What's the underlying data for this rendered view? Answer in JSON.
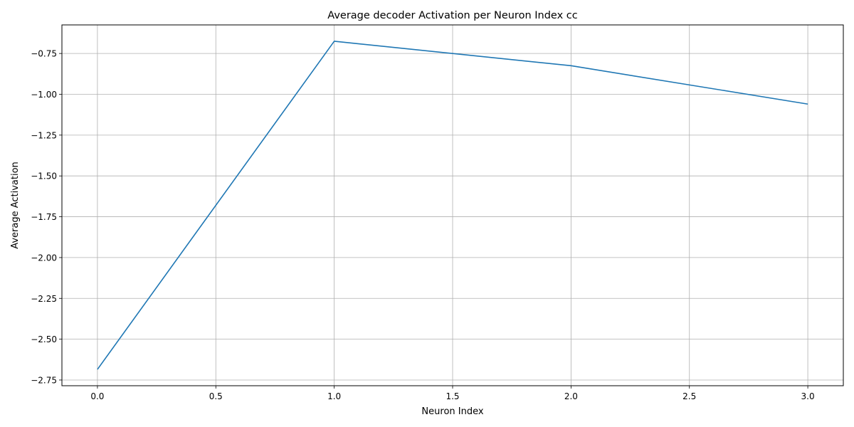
{
  "chart_data": {
    "type": "line",
    "title": "Average decoder Activation per Neuron Index cc",
    "xlabel": "Neuron Index",
    "ylabel": "Average Activation",
    "xlim": [
      -0.15,
      3.15
    ],
    "ylim": [
      -2.785,
      -0.575
    ],
    "xticks": [
      0.0,
      0.5,
      1.0,
      1.5,
      2.0,
      2.5,
      3.0
    ],
    "xtick_labels": [
      "0.0",
      "0.5",
      "1.0",
      "1.5",
      "2.0",
      "2.5",
      "3.0"
    ],
    "yticks": [
      -0.75,
      -1.0,
      -1.25,
      -1.5,
      -1.75,
      -2.0,
      -2.25,
      -2.5,
      -2.75
    ],
    "ytick_labels": [
      "−0.75",
      "−1.00",
      "−1.25",
      "−1.50",
      "−1.75",
      "−2.00",
      "−2.25",
      "−2.50",
      "−2.75"
    ],
    "grid": true,
    "series": [
      {
        "color": "#1f77b4",
        "x": [
          0,
          1,
          2,
          3
        ],
        "y": [
          -2.685,
          -0.675,
          -0.825,
          -1.06
        ]
      }
    ]
  }
}
